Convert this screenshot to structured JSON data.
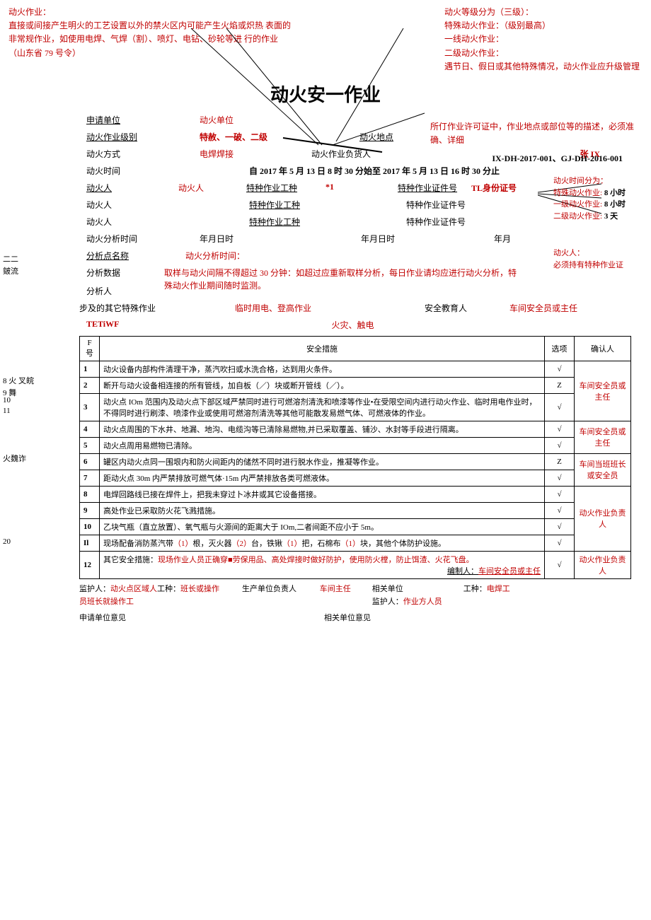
{
  "notes": {
    "top_left_title": "动火作业：",
    "top_left_body": "直接或间接产生明火的工艺设置以外的禁火区内可能产生火焰或炽热 表面的非常规作业，如使用电焊、气焊（割）、喷灯、电钻、砂轮等进 行的作业（山东省 79 号令）",
    "top_right_title": "动火等级分为（三级）：",
    "top_right_l1": "特殊动火作业：（级别最高）",
    "top_right_l2": "一线动火作业：",
    "top_right_l3": "二级动火作业：",
    "top_right_l4": "遇节日、假日或其他特殊情况，动火作业应升级管理",
    "mid_right": "所仃作业许可证中，作业地点或部位等的描述，必须准确、详细",
    "time_title": "动火时间分为：",
    "time_l1a": "特殊动火作业:",
    "time_l1b": "8 小时",
    "time_l2a": "一级动火作业:",
    "time_l2b": "8 小时",
    "time_l3a": "二级动火作业:",
    "time_l3b": "3 天",
    "person_title": "动火人：",
    "person_body": "必须持有特种作业证",
    "analysis_label": "动火分析时间：",
    "analysis_body": "取样与动火间隔不得超过 30 分钟：如超过应重新取样分析，每日作业请均应进行动火分析，特殊动火作业期间随时监测。"
  },
  "doc": {
    "title": "动火安一作业",
    "ids": "IX-DH-2017-001、GJ-DH-2016-001"
  },
  "fields": {
    "apply_unit_lbl": "申请单位",
    "apply_unit_val": "动火单位",
    "level_lbl": "动火作业级别",
    "level_val": "特赦、一破、二级",
    "location_lbl": "动火地点",
    "method_lbl": "动火方式",
    "method_val": "电焊焊接",
    "owner_lbl": "动火作业负货人",
    "owner_val": "张 IX",
    "time_lbl": "动火时间",
    "time_val": "自 2017 年 5 月 13 日 8 时 30 分始至 2017 年 5 月 13 日 16 时 30 分止",
    "fire_person_lbl": "动火人",
    "fire_person_val": "动火人",
    "special_type_lbl": "特种作业工种",
    "special_type_val": "*1",
    "special_cert_lbl": "特种作业证件号",
    "special_cert_val": "TL身份证号",
    "analysis_time_lbl": "动火分析时间",
    "ymdh": "年月日时",
    "ym": "年月",
    "analysis_point_lbl": "分析点名称",
    "analysis_data_lbl": "分析数据",
    "analysis_person_lbl": "分析人",
    "other_ops_lbl": "步及的其它特殊作业",
    "other_ops_val": "临时用电、登高作业",
    "edu_person_lbl": "安全教育人",
    "edu_person_val": "车间安全员或主任",
    "tetiwf": "TETiWF",
    "fire_touch": "火灾、触电"
  },
  "table": {
    "h_num": "F 号",
    "h_measure": "安全措施",
    "h_opt": "选项",
    "h_conf": "确认人",
    "rows": [
      {
        "n": "1",
        "m": "动火设备内部构件清理干净，蒸汽吹扫或水洗合格，达到用火条件。",
        "o": "√"
      },
      {
        "n": "2",
        "m": "断开与动火设备相连接的所有管线，加自板（／）块或断开管线（／）。",
        "o": "Z"
      },
      {
        "n": "3",
        "m": "动火点 IOm 范围内及动火点下部区域严禁同时进行可燃溶剂清洗和喷漆等作业•在受限空间内进行动火作业、临时用电作业时，不得同时进行刷漆、喷漆作业或使用可燃溶剂清洗等其他可能散发易燃气体、可燃液体的作业。",
        "o": "√"
      },
      {
        "n": "4",
        "m": "动火点周围的下水井、地漏、地沟、电缆沟等已清除易燃物,并已采取覆盖、铺沙、水封等手段进行隔离。",
        "o": "√"
      },
      {
        "n": "5",
        "m": "动火点周用易燃物已清除。",
        "o": "√"
      },
      {
        "n": "6",
        "m": "罐区内动火点同一围垠内和防火间距内的储然不同时进行脱水作业，推凝等作业。",
        "o": "Z"
      },
      {
        "n": "7",
        "m": "距动火点 30m 内严禁排放可燃气体·15m 内严禁排放各类可燃液体。",
        "o": "√"
      },
      {
        "n": "8",
        "m": "电焊回路线已接在焊件上，把我未穿过卜冰井或其它设备搭接。",
        "o": "√"
      },
      {
        "n": "9",
        "m": "高处作业已采取防火花飞溅措施。",
        "o": "√"
      },
      {
        "n": "10",
        "m": "乙块气瓶（直立放置）、氧气瓶与火源间的距离大于 IOm,二者间距不应小于 5m。",
        "o": "√"
      },
      {
        "n": "Il",
        "m_prefix": "现场配备消防蒸汽带",
        "m_parts": [
          "（1）",
          "根，灭火器",
          "（2）",
          "台，铁锹",
          "（1）",
          "把，石棉布",
          "（1）",
          "块，其他个体防护设施。"
        ],
        "o": "√"
      },
      {
        "n": "12",
        "m_prefix": "其它安全措施：",
        "m_red": "现场作业人员正确穿■劳保用品、高处焊接时做好防护，使用防火樘，防止饵渣、火花飞盘。",
        "tail_lbl": "编制人：",
        "tail_val": "车间安全员或主任",
        "o": "√"
      }
    ],
    "conf": [
      {
        "span": 3,
        "text": "车间安全员或主任"
      },
      {
        "span": 2,
        "text": "车间安全员或主任"
      },
      {
        "span": 2,
        "text": "车间当班班长或安全员"
      },
      {
        "span": 4,
        "text": "动火作业负责人"
      },
      {
        "span": 1,
        "text": "动火作业负责人"
      }
    ]
  },
  "footer": {
    "guardian_lbl": "监护人：",
    "guardian_val": "动火点区域人",
    "craft_lbl": "工种：",
    "craft_val": "班长或操作员班长就操作工",
    "prod_unit_lbl": "生产单位负责人",
    "prod_unit_val": "车间主任",
    "rel_unit_lbl": "相关单位",
    "guardian2_lbl": "监护人：",
    "guardian2_val": "作业方人员",
    "craft2_lbl": "工种：",
    "craft2_val": "电焊工",
    "apply_opinion": "申请单位意见",
    "rel_opinion": "相关单位意见"
  },
  "sidemarks": {
    "s1": "二二",
    "s2": "皴流",
    "s3": "8  火 叉皖",
    "s4": "9  舞",
    "s5": "10",
    "s6": "11",
    "s7": "火魏诈",
    "s8": "20"
  }
}
